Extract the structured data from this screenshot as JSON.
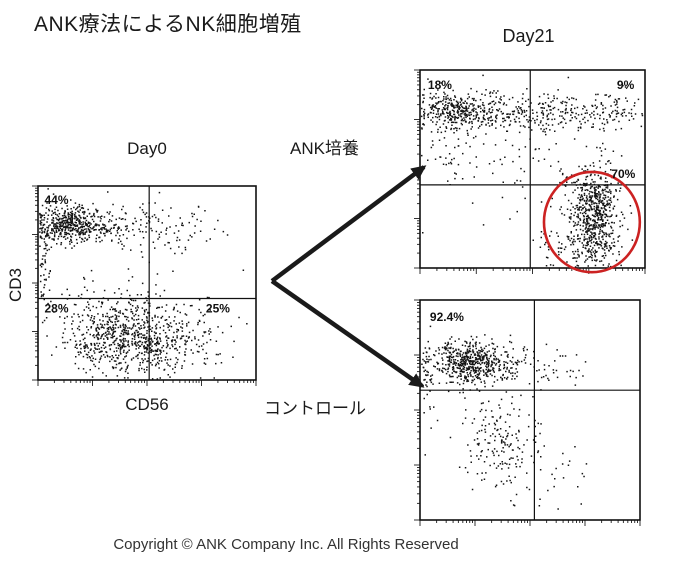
{
  "title": "ANK療法によるNK細胞増殖",
  "labels": {
    "day0": "Day0",
    "day21": "Day21",
    "ank_culture": "ANK培養",
    "control": "コントロール",
    "y_axis": "CD3",
    "x_axis": "CD56"
  },
  "footer": {
    "copyright": "Copyright ©  ANK Company Inc.  All Rights Reserved"
  },
  "colors": {
    "points": "#141414",
    "frame": "#111111",
    "arrow": "#1a1a1a",
    "highlight_ellipse": "#cc2222"
  },
  "chart_data": [
    {
      "id": "day0",
      "type": "scatter",
      "title": "Day0",
      "x_label": "CD56",
      "y_label": "CD3",
      "axis_scale": "log-4-decades",
      "seed": 7,
      "quadrant_divider": {
        "x": 0.51,
        "y": 0.58
      },
      "quadrant_labels": [
        {
          "text": "44%",
          "x": 0.03,
          "y": 0.035
        },
        {
          "text": "28%",
          "x": 0.03,
          "y": 0.595
        },
        {
          "text": "25%",
          "x": 0.77,
          "y": 0.595
        }
      ],
      "clusters": [
        {
          "cx": 0.14,
          "cy": 0.2,
          "sx": 0.075,
          "sy": 0.045,
          "n": 420
        },
        {
          "cx": 0.28,
          "cy": 0.21,
          "sx": 0.1,
          "sy": 0.05,
          "n": 130
        },
        {
          "cx": 0.6,
          "cy": 0.22,
          "sx": 0.14,
          "sy": 0.07,
          "n": 90
        },
        {
          "cx": 0.03,
          "cy": 0.4,
          "sx": 0.015,
          "sy": 0.18,
          "n": 60
        },
        {
          "cx": 0.33,
          "cy": 0.76,
          "sx": 0.1,
          "sy": 0.09,
          "n": 450
        },
        {
          "cx": 0.55,
          "cy": 0.8,
          "sx": 0.09,
          "sy": 0.08,
          "n": 320
        },
        {
          "cx": 0.42,
          "cy": 0.6,
          "sx": 0.15,
          "sy": 0.06,
          "n": 60
        },
        {
          "cx": 0.75,
          "cy": 0.75,
          "sx": 0.1,
          "sy": 0.1,
          "n": 50
        }
      ]
    },
    {
      "id": "day21_ank",
      "type": "scatter",
      "title": "Day21 ANK培養",
      "axis_scale": "log-4-decades",
      "seed": 13,
      "quadrant_divider": {
        "x": 0.49,
        "y": 0.58
      },
      "quadrant_labels": [
        {
          "text": "18%",
          "x": 0.035,
          "y": 0.04
        },
        {
          "text": "9%",
          "x": 0.875,
          "y": 0.04
        },
        {
          "text": "70%",
          "x": 0.85,
          "y": 0.49
        }
      ],
      "ellipse": {
        "cx": 0.764,
        "cy": 0.768,
        "rx": 0.213,
        "ry": 0.253
      },
      "clusters": [
        {
          "cx": 0.13,
          "cy": 0.2,
          "sx": 0.08,
          "sy": 0.05,
          "n": 300
        },
        {
          "cx": 0.35,
          "cy": 0.22,
          "sx": 0.1,
          "sy": 0.05,
          "n": 180
        },
        {
          "cx": 0.6,
          "cy": 0.21,
          "sx": 0.12,
          "sy": 0.05,
          "n": 140
        },
        {
          "cx": 0.85,
          "cy": 0.2,
          "sx": 0.08,
          "sy": 0.05,
          "n": 80
        },
        {
          "cx": 0.77,
          "cy": 0.73,
          "sx": 0.055,
          "sy": 0.12,
          "n": 650
        },
        {
          "cx": 0.7,
          "cy": 0.9,
          "sx": 0.1,
          "sy": 0.05,
          "n": 80
        },
        {
          "cx": 0.45,
          "cy": 0.5,
          "sx": 0.2,
          "sy": 0.12,
          "n": 70
        },
        {
          "cx": 0.1,
          "cy": 0.4,
          "sx": 0.06,
          "sy": 0.1,
          "n": 30
        }
      ]
    },
    {
      "id": "control",
      "type": "scatter",
      "title": "Day21 コントロール",
      "axis_scale": "log-4-decades",
      "seed": 21,
      "quadrant_divider": {
        "x": 0.52,
        "y": 0.41
      },
      "quadrant_labels": [
        {
          "text": "92.4%",
          "x": 0.045,
          "y": 0.045
        }
      ],
      "clusters": [
        {
          "cx": 0.21,
          "cy": 0.28,
          "sx": 0.08,
          "sy": 0.05,
          "n": 480
        },
        {
          "cx": 0.38,
          "cy": 0.29,
          "sx": 0.09,
          "sy": 0.05,
          "n": 110
        },
        {
          "cx": 0.03,
          "cy": 0.35,
          "sx": 0.015,
          "sy": 0.12,
          "n": 40
        },
        {
          "cx": 0.6,
          "cy": 0.3,
          "sx": 0.1,
          "sy": 0.06,
          "n": 35
        },
        {
          "cx": 0.36,
          "cy": 0.62,
          "sx": 0.09,
          "sy": 0.1,
          "n": 150
        },
        {
          "cx": 0.5,
          "cy": 0.8,
          "sx": 0.13,
          "sy": 0.08,
          "n": 50
        }
      ]
    }
  ]
}
